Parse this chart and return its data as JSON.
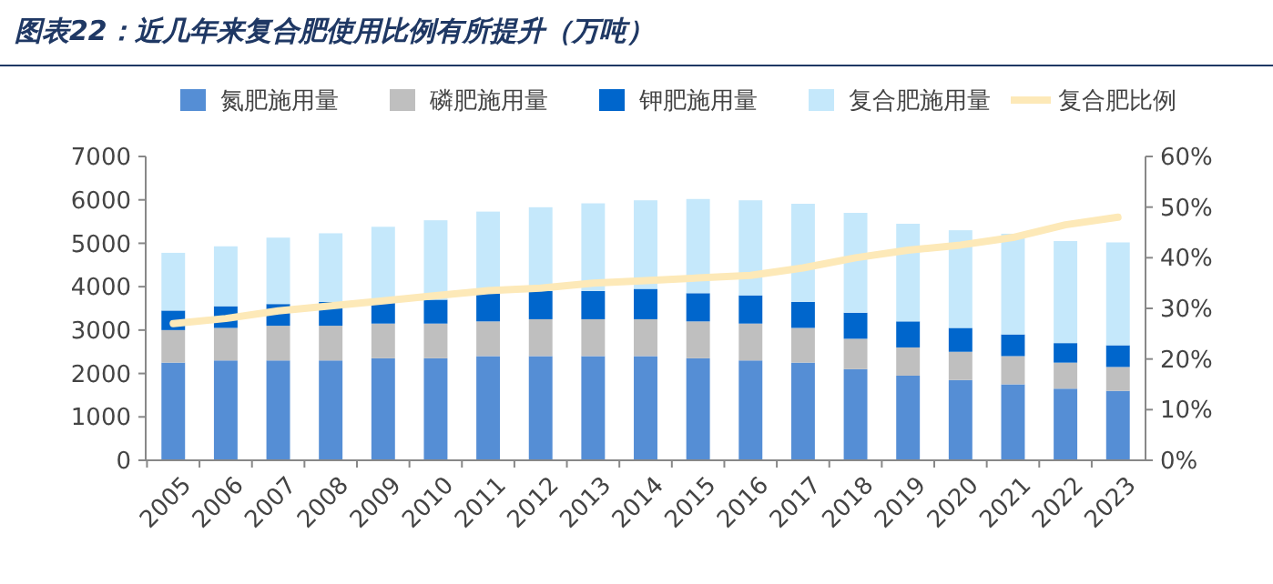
{
  "chart_data": {
    "type": "bar",
    "stacked": true,
    "title": "图表22：近几年来复合肥使用比例有所提升（万吨）",
    "categories": [
      "2005",
      "2006",
      "2007",
      "2008",
      "2009",
      "2010",
      "2011",
      "2012",
      "2013",
      "2014",
      "2015",
      "2016",
      "2017",
      "2018",
      "2019",
      "2020",
      "2021",
      "2022",
      "2023"
    ],
    "series": [
      {
        "name": "氮肥施用量",
        "color": "#558ed5",
        "values": [
          2250,
          2300,
          2300,
          2300,
          2350,
          2350,
          2400,
          2400,
          2400,
          2400,
          2350,
          2300,
          2250,
          2100,
          1950,
          1850,
          1750,
          1650,
          1600
        ]
      },
      {
        "name": "磷肥施用量",
        "color": "#bfbfbf",
        "values": [
          750,
          750,
          800,
          800,
          800,
          800,
          800,
          850,
          850,
          850,
          850,
          850,
          800,
          700,
          650,
          650,
          650,
          600,
          550
        ]
      },
      {
        "name": "钾肥施用量",
        "color": "#0066cc",
        "values": [
          450,
          500,
          500,
          550,
          500,
          550,
          650,
          650,
          650,
          700,
          650,
          650,
          600,
          600,
          600,
          550,
          500,
          450,
          500
        ]
      },
      {
        "name": "复合肥施用量",
        "color": "#c5e8fb",
        "values": [
          1330,
          1380,
          1530,
          1580,
          1730,
          1830,
          1880,
          1930,
          2020,
          2040,
          2170,
          2190,
          2260,
          2300,
          2250,
          2250,
          2320,
          2350,
          2370
        ]
      },
      {
        "name": "复合肥比例",
        "type": "line",
        "axis": "y2",
        "color": "#fde9b8",
        "values": [
          27,
          28,
          29.5,
          30.5,
          31.5,
          32.5,
          33.5,
          34,
          35,
          35.5,
          36,
          36.5,
          38,
          40,
          41.5,
          42.5,
          44,
          46.5,
          48
        ]
      }
    ],
    "ylim": [
      0,
      7000
    ],
    "yticks": [
      0,
      1000,
      2000,
      3000,
      4000,
      5000,
      6000,
      7000
    ],
    "y2lim": [
      0,
      60
    ],
    "y2ticks": [
      {
        "value": 0,
        "label": "0%"
      },
      {
        "value": 10,
        "label": "10%"
      },
      {
        "value": 20,
        "label": "20%"
      },
      {
        "value": 30,
        "label": "30%"
      },
      {
        "value": 40,
        "label": "40%"
      },
      {
        "value": 50,
        "label": "50%"
      },
      {
        "value": 60,
        "label": "60%"
      }
    ],
    "legend": "top",
    "grid": false
  }
}
